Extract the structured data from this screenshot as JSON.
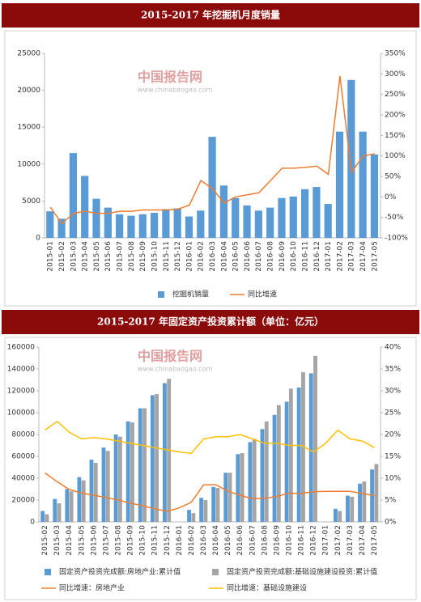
{
  "chart_data": [
    {
      "type": "bar",
      "title": "2015-2017 年挖掘机月度销量",
      "watermark": "中国报告网",
      "watermark_url": "www.chinabaogao.com",
      "categories": [
        "2015-01",
        "2015-02",
        "2015-03",
        "2015-04",
        "2015-05",
        "2015-06",
        "2015-07",
        "2015-08",
        "2015-09",
        "2015-10",
        "2015-11",
        "2015-12",
        "2016-01",
        "2016-02",
        "2016-03",
        "2016-04",
        "2016-05",
        "2016-06",
        "2016-07",
        "2016-08",
        "2016-09",
        "2016-10",
        "2016-11",
        "2016-12",
        "2017-01",
        "2017-02",
        "2017-03",
        "2017-04",
        "2017-05"
      ],
      "series": [
        {
          "name": "挖掘机销量",
          "type": "bar",
          "color": "#5b9bd5",
          "values": [
            3600,
            2600,
            11500,
            8400,
            5300,
            4100,
            3200,
            3000,
            3200,
            3400,
            3900,
            4000,
            2900,
            3700,
            13700,
            7100,
            5400,
            4400,
            3700,
            4100,
            5400,
            5600,
            6600,
            6900,
            4600,
            14400,
            21400,
            14400,
            11300
          ]
        },
        {
          "name": "同比增速",
          "type": "line",
          "axis": "y2",
          "color": "#ed7d31",
          "values": [
            -25,
            -65,
            -40,
            -35,
            -40,
            -40,
            -35,
            -35,
            -32,
            -32,
            -32,
            -30,
            -20,
            40,
            20,
            -15,
            0,
            5,
            10,
            40,
            70,
            70,
            72,
            75,
            55,
            295,
            60,
            100,
            105
          ]
        }
      ],
      "ylim": [
        0,
        25000
      ],
      "yticks": [
        0,
        5000,
        10000,
        15000,
        20000,
        25000
      ],
      "y2lim": [
        -100,
        350
      ],
      "y2ticks": [
        {
          "value": -100,
          "label": "-100%"
        },
        {
          "value": -50,
          "label": "-50%"
        },
        {
          "value": 0,
          "label": "0%"
        },
        {
          "value": 50,
          "label": "50%"
        },
        {
          "value": 100,
          "label": "100%"
        },
        {
          "value": 150,
          "label": "150%"
        },
        {
          "value": 200,
          "label": "200%"
        },
        {
          "value": 250,
          "label": "250%"
        },
        {
          "value": 300,
          "label": "300%"
        },
        {
          "value": 350,
          "label": "350%"
        }
      ],
      "grid": false,
      "legend": "bottom"
    },
    {
      "type": "bar",
      "title": "2015-2017 年固定资产投资累计额（单位：亿元）",
      "watermark": "中国报告网",
      "watermark_url": "www.chinabaogao.com",
      "categories": [
        "2015-02",
        "2015-03",
        "2015-04",
        "2015-05",
        "2015-06",
        "2015-07",
        "2015-08",
        "2015-09",
        "2015-10",
        "2015-11",
        "2015-12",
        "2016-01",
        "2016-02",
        "2016-03",
        "2016-04",
        "2016-05",
        "2016-06",
        "2016-07",
        "2016-08",
        "2016-09",
        "2016-10",
        "2016-11",
        "2016-12",
        "2017-01",
        "2017-02",
        "2017-03",
        "2017-04",
        "2017-05"
      ],
      "series": [
        {
          "name": "固定资产投资完成额:房地产业:累计值",
          "type": "bar",
          "color": "#5b9bd5",
          "values": [
            10000,
            21000,
            30000,
            41000,
            57000,
            68000,
            80000,
            92000,
            104000,
            116000,
            127000,
            null,
            11000,
            22000,
            32000,
            45000,
            62000,
            73000,
            85000,
            98000,
            110000,
            123000,
            136000,
            null,
            12000,
            24000,
            35000,
            48000
          ]
        },
        {
          "name": "固定资产投资完成额:基础设施建设投资:累计值",
          "type": "bar",
          "color": "#a5a5a5",
          "values": [
            7000,
            17000,
            28000,
            38000,
            54000,
            65000,
            78000,
            91000,
            104000,
            117000,
            131000,
            null,
            8000,
            20000,
            31000,
            45000,
            63000,
            76000,
            92000,
            107000,
            122000,
            137000,
            152000,
            null,
            10000,
            23000,
            37000,
            53000
          ]
        },
        {
          "name": "同比增速：房地产业",
          "type": "line",
          "axis": "y2",
          "color": "#ed7d31",
          "values": [
            11.2,
            9.2,
            7.4,
            6.6,
            6.1,
            5.6,
            5.0,
            4.3,
            3.7,
            3.0,
            2.4,
            3.2,
            4.5,
            8.5,
            8.5,
            7.0,
            6.1,
            5.3,
            5.4,
            5.8,
            6.6,
            6.5,
            6.9,
            7.0,
            7.0,
            7.0,
            6.5,
            6.0
          ]
        },
        {
          "name": "同比增速：基础设施建设",
          "type": "line",
          "axis": "y2",
          "color": "#ffc000",
          "values": [
            21.0,
            23.0,
            20.5,
            19.0,
            19.3,
            19.0,
            18.5,
            18.0,
            17.5,
            17.0,
            16.5,
            16.0,
            15.7,
            19.0,
            19.5,
            19.5,
            20.0,
            19.0,
            18.0,
            18.0,
            17.5,
            17.5,
            16.0,
            18.0,
            21.0,
            19.0,
            18.5,
            17.0
          ]
        }
      ],
      "ylim": [
        0,
        160000
      ],
      "yticks": [
        0,
        20000,
        40000,
        60000,
        80000,
        100000,
        120000,
        140000,
        160000
      ],
      "y2lim": [
        0,
        40
      ],
      "y2ticks": [
        {
          "value": 0,
          "label": "0%"
        },
        {
          "value": 5,
          "label": "5%"
        },
        {
          "value": 10,
          "label": "10%"
        },
        {
          "value": 15,
          "label": "15%"
        },
        {
          "value": 20,
          "label": "20%"
        },
        {
          "value": 25,
          "label": "25%"
        },
        {
          "value": 30,
          "label": "30%"
        },
        {
          "value": 35,
          "label": "35%"
        },
        {
          "value": 40,
          "label": "40%"
        }
      ],
      "grid": false,
      "legend": "bottom"
    }
  ]
}
